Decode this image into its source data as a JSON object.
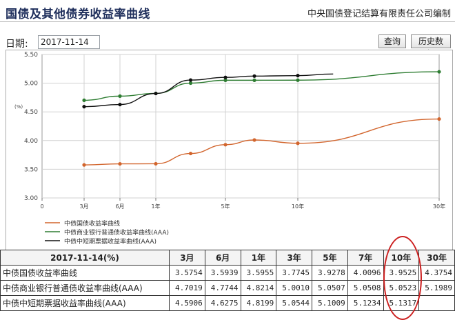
{
  "header": {
    "title": "国债及其他债券收益率曲线",
    "publisher": "中央国债登记结算有限责任公司编制"
  },
  "toolbar": {
    "date_label": "日期:",
    "date_value": "2017-11-14",
    "query_label": "查询",
    "history_label": "历史数据"
  },
  "chart_data": {
    "type": "line",
    "y_unit_label": "(%)",
    "ylim": [
      3.0,
      5.5
    ],
    "y_ticks": [
      "3.00",
      "3.50",
      "4.00",
      "4.50",
      "5.00",
      "5.50"
    ],
    "xlim": [
      0,
      30
    ],
    "x_ticks": [
      {
        "value": 0,
        "label": "0"
      },
      {
        "value": 0.25,
        "label": "3月"
      },
      {
        "value": 0.5,
        "label": "6月"
      },
      {
        "value": 1,
        "label": "1年"
      },
      {
        "value": 5,
        "label": "5年"
      },
      {
        "value": 10,
        "label": "10年"
      },
      {
        "value": 30,
        "label": "30年"
      }
    ],
    "grid": true,
    "legend_position": "bottom-left",
    "series": [
      {
        "name": "中债国债收益率曲线",
        "color": "#d2652d",
        "points": [
          [
            0.25,
            3.5754
          ],
          [
            0.5,
            3.5939
          ],
          [
            1,
            3.5955
          ],
          [
            3,
            3.7745
          ],
          [
            5,
            3.9278
          ],
          [
            7,
            4.0096
          ],
          [
            10,
            3.9525
          ],
          [
            30,
            4.3754
          ]
        ]
      },
      {
        "name": "中债商业银行普通债收益率曲线(AAA)",
        "color": "#2e7d32",
        "points": [
          [
            0.25,
            4.7019
          ],
          [
            0.5,
            4.7744
          ],
          [
            1,
            4.8214
          ],
          [
            3,
            5.001
          ],
          [
            5,
            5.0507
          ],
          [
            7,
            5.0508
          ],
          [
            10,
            5.0523
          ],
          [
            30,
            5.1989
          ]
        ]
      },
      {
        "name": "中债中短期票据收益率曲线(AAA)",
        "color": "#111111",
        "points": [
          [
            0.25,
            4.5906
          ],
          [
            0.5,
            4.6275
          ],
          [
            1,
            4.8199
          ],
          [
            3,
            5.0544
          ],
          [
            5,
            5.1009
          ],
          [
            7,
            5.1234
          ],
          [
            10,
            5.1317
          ],
          [
            15,
            5.16
          ]
        ]
      }
    ]
  },
  "table": {
    "header_date": "2017-11-14(%)",
    "columns": [
      "3月",
      "6月",
      "1年",
      "3年",
      "5年",
      "7年",
      "10年",
      "30年"
    ],
    "rows": [
      {
        "name": "中债国债收益率曲线",
        "values": [
          "3.5754",
          "3.5939",
          "3.5955",
          "3.7745",
          "3.9278",
          "4.0096",
          "3.9525",
          "4.3754"
        ]
      },
      {
        "name": "中债商业银行普通债收益率曲线(AAA)",
        "values": [
          "4.7019",
          "4.7744",
          "4.8214",
          "5.0010",
          "5.0507",
          "5.0508",
          "5.0523",
          "5.1989"
        ]
      },
      {
        "name": "中债中短期票据收益率曲线(AAA)",
        "values": [
          "4.5906",
          "4.6275",
          "4.8199",
          "5.0544",
          "5.1009",
          "5.1234",
          "5.1317",
          ""
        ]
      }
    ]
  },
  "highlight": {
    "column": "10年",
    "color": "#cc1f1f"
  }
}
